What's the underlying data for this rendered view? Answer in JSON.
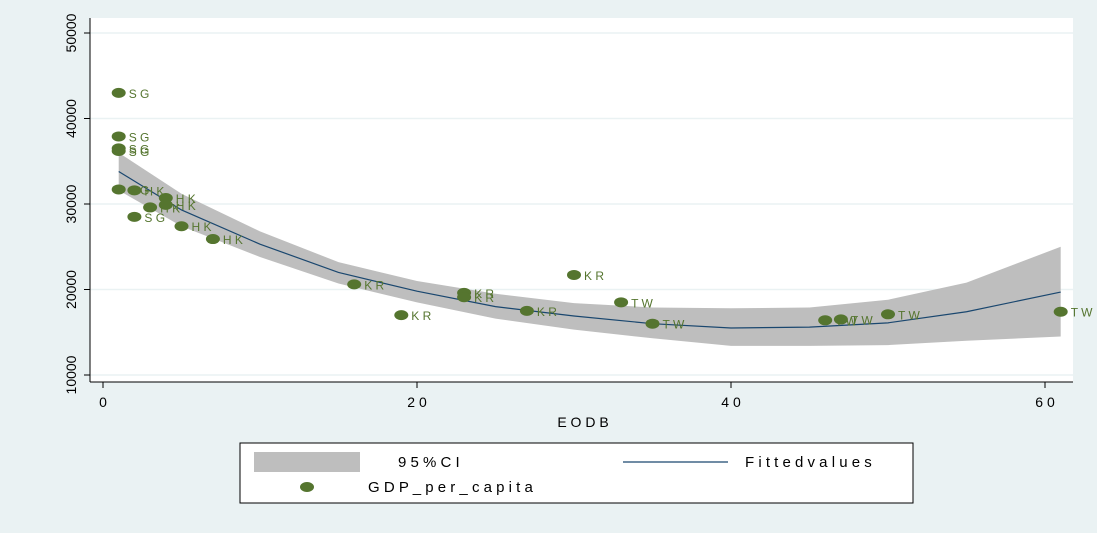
{
  "chart_data": {
    "type": "scatter",
    "title": "",
    "xlabel": "E O D B",
    "ylabel": "",
    "xlim": [
      0,
      62
    ],
    "ylim": [
      10000,
      51000
    ],
    "xticks": [
      0,
      20,
      40,
      60
    ],
    "xtick_labels": [
      "0",
      "2 0",
      "4 0",
      "6 0"
    ],
    "yticks": [
      10000,
      20000,
      30000,
      40000,
      50000
    ],
    "ytick_labels": [
      "10000",
      "20000",
      "30000",
      "40000",
      "50000"
    ],
    "grid": "horizontal",
    "legend_position": "bottom",
    "legend": {
      "ci_label": "9 5 %  C I",
      "fit_label": "F i t t e d  v a l u e s",
      "points_label": "G D P _ p e r _ c a p i t a"
    },
    "colors": {
      "background": "#eaf2f3",
      "plot_bg": "#ffffff",
      "ci_band": "#bebebe",
      "fit_line": "#1a476f",
      "marker": "#55752f",
      "grid": "#eaf2f3"
    },
    "fitted_curve": {
      "x": [
        1,
        5,
        10,
        15,
        20,
        25,
        30,
        35,
        40,
        45,
        50,
        55,
        61
      ],
      "y": [
        33800,
        29300,
        25300,
        22000,
        19800,
        18000,
        16900,
        16000,
        15500,
        15600,
        16100,
        17400,
        19700
      ],
      "ci_upper": [
        36000,
        31200,
        26800,
        23200,
        21000,
        19500,
        18400,
        17900,
        17800,
        17900,
        18800,
        20800,
        25000
      ],
      "ci_lower": [
        31600,
        27400,
        23800,
        20700,
        18500,
        16600,
        15300,
        14300,
        13400,
        13400,
        13500,
        14000,
        14500
      ]
    },
    "points": [
      {
        "x": 1,
        "y": 43000,
        "label": "S G"
      },
      {
        "x": 1,
        "y": 37900,
        "label": "S G"
      },
      {
        "x": 1,
        "y": 36500,
        "label": "S G"
      },
      {
        "x": 1,
        "y": 36200,
        "label": "S G"
      },
      {
        "x": 1,
        "y": 31700,
        "label": "S G"
      },
      {
        "x": 2,
        "y": 28500,
        "label": "S G"
      },
      {
        "x": 2,
        "y": 31600,
        "label": "H K"
      },
      {
        "x": 3,
        "y": 29600,
        "label": "H K"
      },
      {
        "x": 4,
        "y": 30700,
        "label": "H K"
      },
      {
        "x": 4,
        "y": 29900,
        "label": "H K"
      },
      {
        "x": 5,
        "y": 27400,
        "label": "H K"
      },
      {
        "x": 7,
        "y": 25900,
        "label": "H K"
      },
      {
        "x": 16,
        "y": 20600,
        "label": "K R"
      },
      {
        "x": 19,
        "y": 17000,
        "label": "K R"
      },
      {
        "x": 23,
        "y": 19600,
        "label": "K R"
      },
      {
        "x": 23,
        "y": 19100,
        "label": "K R"
      },
      {
        "x": 27,
        "y": 17500,
        "label": "K R"
      },
      {
        "x": 30,
        "y": 21700,
        "label": "K R"
      },
      {
        "x": 33,
        "y": 18500,
        "label": "T W"
      },
      {
        "x": 35,
        "y": 16000,
        "label": "T W"
      },
      {
        "x": 46,
        "y": 16400,
        "label": "T W"
      },
      {
        "x": 47,
        "y": 16500,
        "label": "T W"
      },
      {
        "x": 50,
        "y": 17100,
        "label": "T W"
      },
      {
        "x": 61,
        "y": 17400,
        "label": "T W"
      }
    ]
  }
}
